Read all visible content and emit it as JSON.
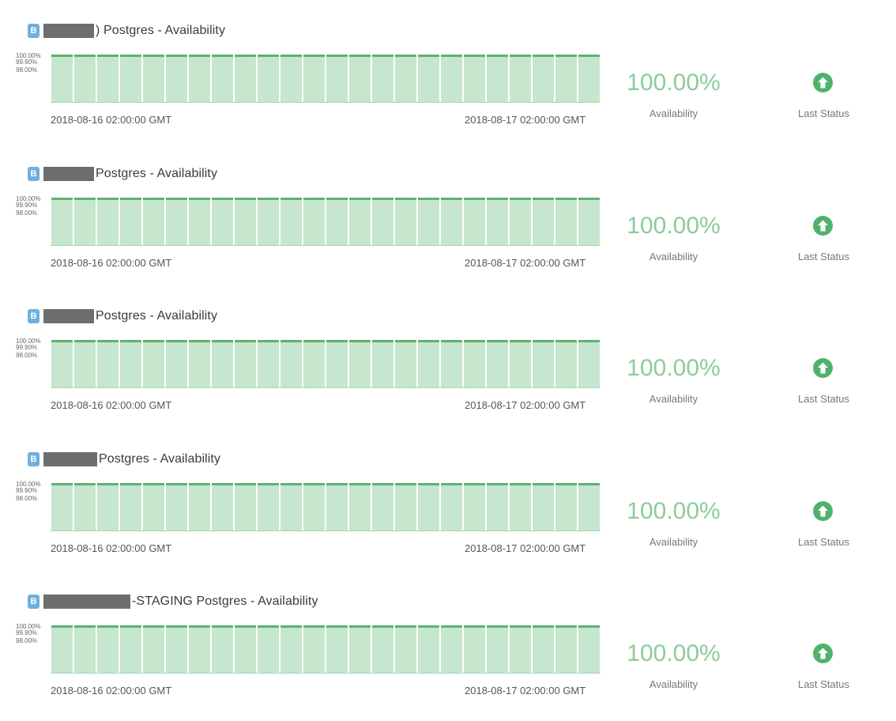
{
  "colors": {
    "bar_fill": "#c6e6cd",
    "bar_top": "#5eb174",
    "badge": "#6fb0de",
    "availability_text": "#8ccc9a",
    "status_icon": "#4fb26b"
  },
  "monitors": [
    {
      "badge": "B",
      "title": ") Postgres - Availability",
      "availability_value": "100.00%",
      "availability_label": "Availability",
      "status_label": "Last Status",
      "status_icon": "arrow-up-circle-icon",
      "chart_data": {
        "type": "bar",
        "y_ticks": [
          "100.00%",
          "99.90%",
          "98.00%"
        ],
        "x_start_label": "2018-08-16 02:00:00 GMT",
        "x_end_label": "2018-08-17 02:00:00 GMT",
        "values": [
          100,
          100,
          100,
          100,
          100,
          100,
          100,
          100,
          100,
          100,
          100,
          100,
          100,
          100,
          100,
          100,
          100,
          100,
          100,
          100,
          100,
          100,
          100,
          100
        ]
      }
    },
    {
      "badge": "B",
      "title": "Postgres - Availability",
      "availability_value": "100.00%",
      "availability_label": "Availability",
      "status_label": "Last Status",
      "status_icon": "arrow-up-circle-icon",
      "chart_data": {
        "type": "bar",
        "y_ticks": [
          "100.00%",
          "99.90%",
          "98.00%"
        ],
        "x_start_label": "2018-08-16 02:00:00 GMT",
        "x_end_label": "2018-08-17 02:00:00 GMT",
        "values": [
          100,
          100,
          100,
          100,
          100,
          100,
          100,
          100,
          100,
          100,
          100,
          100,
          100,
          100,
          100,
          100,
          100,
          100,
          100,
          100,
          100,
          100,
          100,
          100
        ]
      }
    },
    {
      "badge": "B",
      "title": "Postgres - Availability",
      "availability_value": "100.00%",
      "availability_label": "Availability",
      "status_label": "Last Status",
      "status_icon": "arrow-up-circle-icon",
      "chart_data": {
        "type": "bar",
        "y_ticks": [
          "100.00%",
          "99.90%",
          "98.00%"
        ],
        "x_start_label": "2018-08-16 02:00:00 GMT",
        "x_end_label": "2018-08-17 02:00:00 GMT",
        "values": [
          100,
          100,
          100,
          100,
          100,
          100,
          100,
          100,
          100,
          100,
          100,
          100,
          100,
          100,
          100,
          100,
          100,
          100,
          100,
          100,
          100,
          100,
          100,
          100
        ]
      }
    },
    {
      "badge": "B",
      "title": "Postgres - Availability",
      "availability_value": "100.00%",
      "availability_label": "Availability",
      "status_label": "Last Status",
      "status_icon": "arrow-up-circle-icon",
      "chart_data": {
        "type": "bar",
        "y_ticks": [
          "100.00%",
          "99.90%",
          "98.00%"
        ],
        "x_start_label": "2018-08-16 02:00:00 GMT",
        "x_end_label": "2018-08-17 02:00:00 GMT",
        "values": [
          100,
          100,
          100,
          100,
          100,
          100,
          100,
          100,
          100,
          100,
          100,
          100,
          100,
          100,
          100,
          100,
          100,
          100,
          100,
          100,
          100,
          100,
          100,
          100
        ]
      }
    },
    {
      "badge": "B",
      "title": "-STAGING Postgres - Availability",
      "availability_value": "100.00%",
      "availability_label": "Availability",
      "status_label": "Last Status",
      "status_icon": "arrow-up-circle-icon",
      "chart_data": {
        "type": "bar",
        "y_ticks": [
          "100.00%",
          "99.90%",
          "98.00%"
        ],
        "x_start_label": "2018-08-16 02:00:00 GMT",
        "x_end_label": "2018-08-17 02:00:00 GMT",
        "values": [
          100,
          100,
          100,
          100,
          100,
          100,
          100,
          100,
          100,
          100,
          100,
          100,
          100,
          100,
          100,
          100,
          100,
          100,
          100,
          100,
          100,
          100,
          100,
          100
        ]
      }
    }
  ]
}
